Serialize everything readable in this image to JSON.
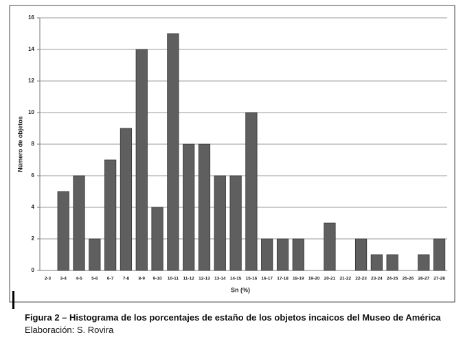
{
  "chart_data": {
    "type": "bar",
    "categories": [
      "2-3",
      "3-4",
      "4-5",
      "5-6",
      "6-7",
      "7-8",
      "8-9",
      "9-10",
      "10-11",
      "11-12",
      "12-13",
      "13-14",
      "14-15",
      "15-16",
      "16-17",
      "17-18",
      "18-19",
      "19-20",
      "20-21",
      "21-22",
      "22-23",
      "23-24",
      "24-25",
      "25-26",
      "26-27",
      "27-28"
    ],
    "values": [
      0,
      5,
      6,
      2,
      7,
      9,
      14,
      4,
      15,
      8,
      8,
      6,
      6,
      10,
      2,
      2,
      2,
      0,
      3,
      0,
      2,
      1,
      1,
      0,
      1,
      2
    ],
    "color": "#5f5f5f",
    "xlabel": "Sn (%)",
    "ylabel": "Número de objetos",
    "ylim": [
      0,
      16
    ],
    "yticks": [
      0,
      2,
      4,
      6,
      8,
      10,
      12,
      14,
      16
    ],
    "grid": true
  },
  "caption": {
    "title": "Figura 2 – Histograma de los porcentajes de estaño de los objetos incaicos del Museo de América",
    "credit": "Elaboración: S. Rovira"
  }
}
